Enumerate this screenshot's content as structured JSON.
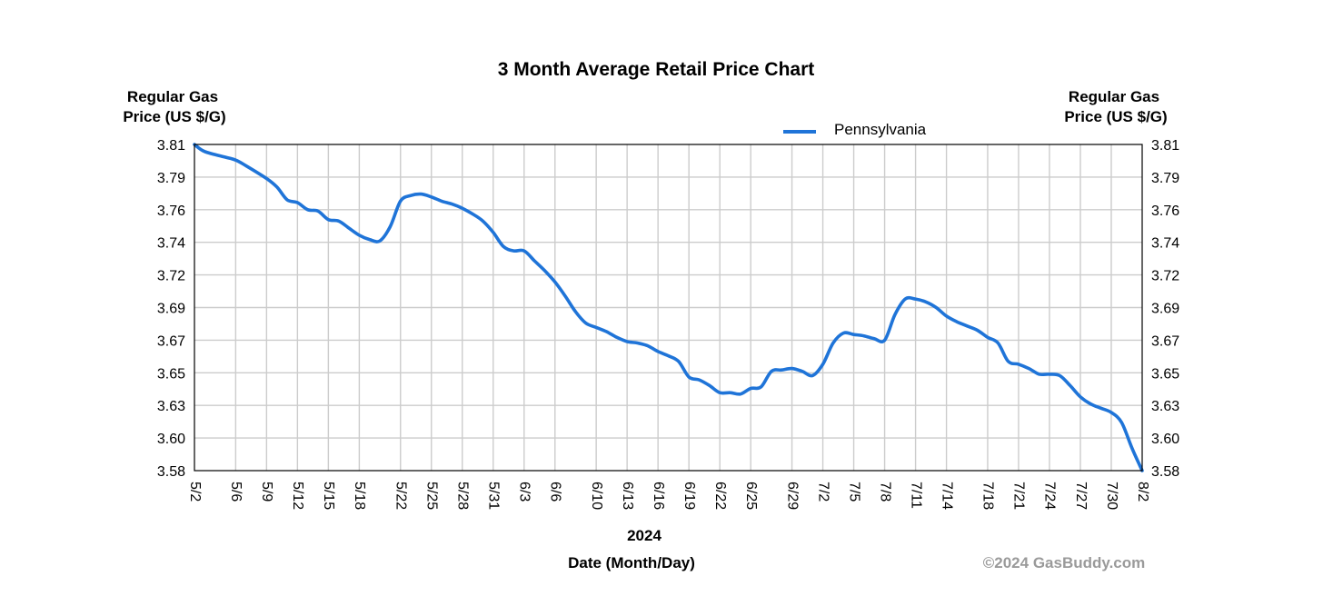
{
  "chart_data": {
    "type": "line",
    "title": "3 Month Average Retail Price Chart",
    "y_label_left": [
      "Regular Gas",
      "Price (US $/G)"
    ],
    "y_label_right": [
      "Regular Gas",
      "Price (US $/G)"
    ],
    "xlabel_year": "2024",
    "xlabel": "Date (Month/Day)",
    "credit": "©2024 GasBuddy.com",
    "legend_position": "top-right",
    "grid": true,
    "ylim": [
      3.58,
      3.81
    ],
    "y_ticks": [
      "3.81",
      "3.79",
      "3.76",
      "3.74",
      "3.72",
      "3.69",
      "3.67",
      "3.65",
      "3.63",
      "3.60",
      "3.58"
    ],
    "x_ticks": [
      "5/2",
      "5/6",
      "5/9",
      "5/12",
      "5/15",
      "5/18",
      "5/22",
      "5/25",
      "5/28",
      "5/31",
      "6/3",
      "6/6",
      "6/10",
      "6/13",
      "6/16",
      "6/19",
      "6/22",
      "6/25",
      "6/29",
      "7/2",
      "7/5",
      "7/8",
      "7/11",
      "7/14",
      "7/18",
      "7/21",
      "7/24",
      "7/27",
      "7/30",
      "8/2"
    ],
    "x_start": "5/2",
    "x_end": "8/2",
    "series": [
      {
        "name": "Pennsylvania",
        "color": "#1f74d8",
        "points": [
          [
            "5/2",
            3.81
          ],
          [
            "5/3",
            3.805
          ],
          [
            "5/5",
            3.801
          ],
          [
            "5/6",
            3.799
          ],
          [
            "5/7",
            3.795
          ],
          [
            "5/9",
            3.786
          ],
          [
            "5/10",
            3.78
          ],
          [
            "5/11",
            3.771
          ],
          [
            "5/12",
            3.769
          ],
          [
            "5/13",
            3.764
          ],
          [
            "5/14",
            3.763
          ],
          [
            "5/15",
            3.757
          ],
          [
            "5/16",
            3.756
          ],
          [
            "5/17",
            3.751
          ],
          [
            "5/18",
            3.746
          ],
          [
            "5/19",
            3.743
          ],
          [
            "5/20",
            3.742
          ],
          [
            "5/21",
            3.752
          ],
          [
            "5/22",
            3.77
          ],
          [
            "5/23",
            3.774
          ],
          [
            "5/24",
            3.775
          ],
          [
            "5/25",
            3.773
          ],
          [
            "5/26",
            3.77
          ],
          [
            "5/27",
            3.768
          ],
          [
            "5/28",
            3.765
          ],
          [
            "5/29",
            3.761
          ],
          [
            "5/30",
            3.756
          ],
          [
            "5/31",
            3.748
          ],
          [
            "6/1",
            3.738
          ],
          [
            "6/2",
            3.735
          ],
          [
            "6/3",
            3.735
          ],
          [
            "6/4",
            3.728
          ],
          [
            "6/5",
            3.721
          ],
          [
            "6/6",
            3.713
          ],
          [
            "6/7",
            3.703
          ],
          [
            "6/8",
            3.692
          ],
          [
            "6/9",
            3.684
          ],
          [
            "6/10",
            3.681
          ],
          [
            "6/11",
            3.678
          ],
          [
            "6/12",
            3.674
          ],
          [
            "6/13",
            3.671
          ],
          [
            "6/14",
            3.67
          ],
          [
            "6/15",
            3.668
          ],
          [
            "6/16",
            3.664
          ],
          [
            "6/17",
            3.661
          ],
          [
            "6/18",
            3.657
          ],
          [
            "6/19",
            3.646
          ],
          [
            "6/20",
            3.644
          ],
          [
            "6/21",
            3.64
          ],
          [
            "6/22",
            3.635
          ],
          [
            "6/23",
            3.635
          ],
          [
            "6/24",
            3.634
          ],
          [
            "6/25",
            3.638
          ],
          [
            "6/26",
            3.639
          ],
          [
            "6/27",
            3.65
          ],
          [
            "6/28",
            3.651
          ],
          [
            "6/29",
            3.652
          ],
          [
            "6/30",
            3.65
          ],
          [
            "7/1",
            3.647
          ],
          [
            "7/2",
            3.655
          ],
          [
            "7/3",
            3.67
          ],
          [
            "7/4",
            3.677
          ],
          [
            "7/5",
            3.676
          ],
          [
            "7/6",
            3.675
          ],
          [
            "7/7",
            3.673
          ],
          [
            "7/8",
            3.672
          ],
          [
            "7/9",
            3.69
          ],
          [
            "7/10",
            3.701
          ],
          [
            "7/11",
            3.701
          ],
          [
            "7/12",
            3.699
          ],
          [
            "7/13",
            3.695
          ],
          [
            "7/14",
            3.689
          ],
          [
            "7/15",
            3.685
          ],
          [
            "7/16",
            3.682
          ],
          [
            "7/17",
            3.679
          ],
          [
            "7/18",
            3.674
          ],
          [
            "7/19",
            3.67
          ],
          [
            "7/20",
            3.657
          ],
          [
            "7/21",
            3.655
          ],
          [
            "7/22",
            3.652
          ],
          [
            "7/23",
            3.648
          ],
          [
            "7/24",
            3.648
          ],
          [
            "7/25",
            3.647
          ],
          [
            "7/26",
            3.64
          ],
          [
            "7/27",
            3.632
          ],
          [
            "7/28",
            3.627
          ],
          [
            "7/29",
            3.624
          ],
          [
            "7/30",
            3.621
          ],
          [
            "7/31",
            3.614
          ],
          [
            "8/1",
            3.596
          ],
          [
            "8/2",
            3.58
          ]
        ]
      }
    ]
  }
}
